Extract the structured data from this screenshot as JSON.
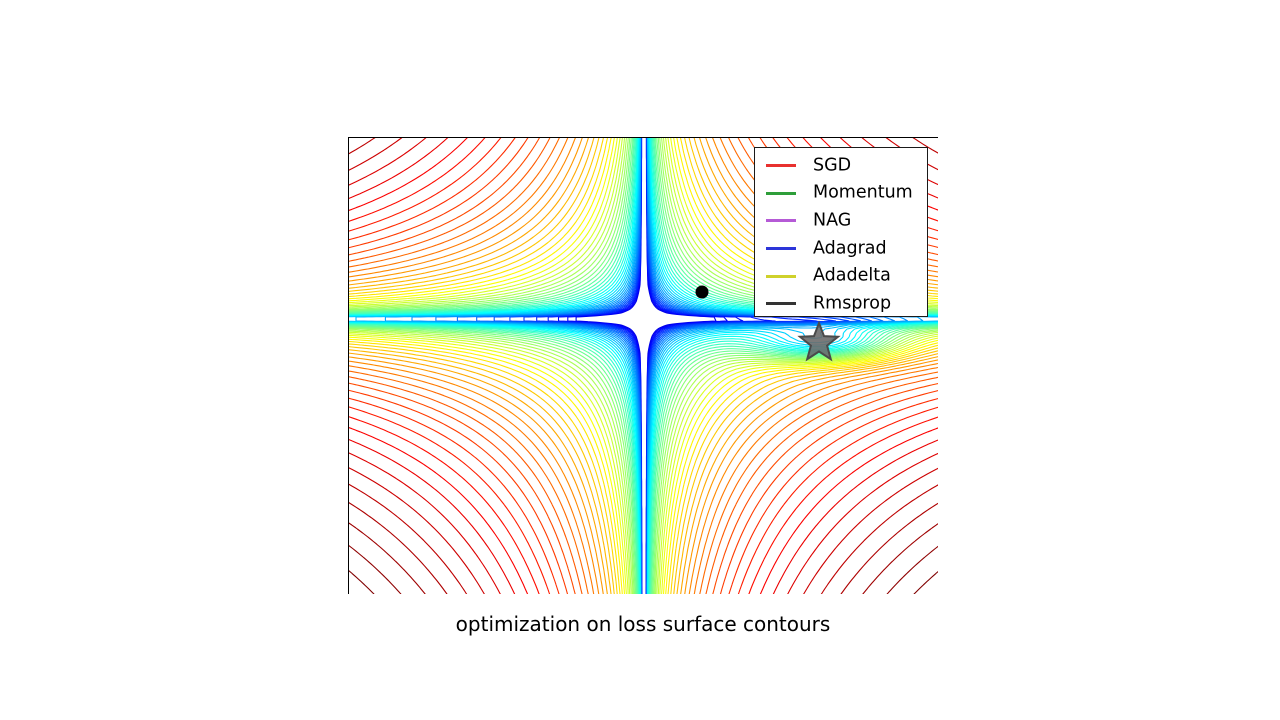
{
  "caption": "optimization on loss surface contours",
  "chart_data": {
    "type": "contour",
    "surface": "saddle-shaped loss surface",
    "colormap": "jet",
    "grid": false,
    "legend_position": "top-right",
    "legend": [
      {
        "name": "SGD",
        "color": "#e8312f"
      },
      {
        "name": "Momentum",
        "color": "#2e9e3a"
      },
      {
        "name": "NAG",
        "color": "#b55ad6"
      },
      {
        "name": "Adagrad",
        "color": "#2c35d9"
      },
      {
        "name": "Adadelta",
        "color": "#cfd12b"
      },
      {
        "name": "Rmsprop",
        "color": "#333333"
      }
    ],
    "markers": [
      {
        "name": "start point",
        "shape": "circle",
        "color": "#000000"
      },
      {
        "name": "global minimum",
        "shape": "star",
        "color": "#6b6b6b"
      }
    ]
  }
}
